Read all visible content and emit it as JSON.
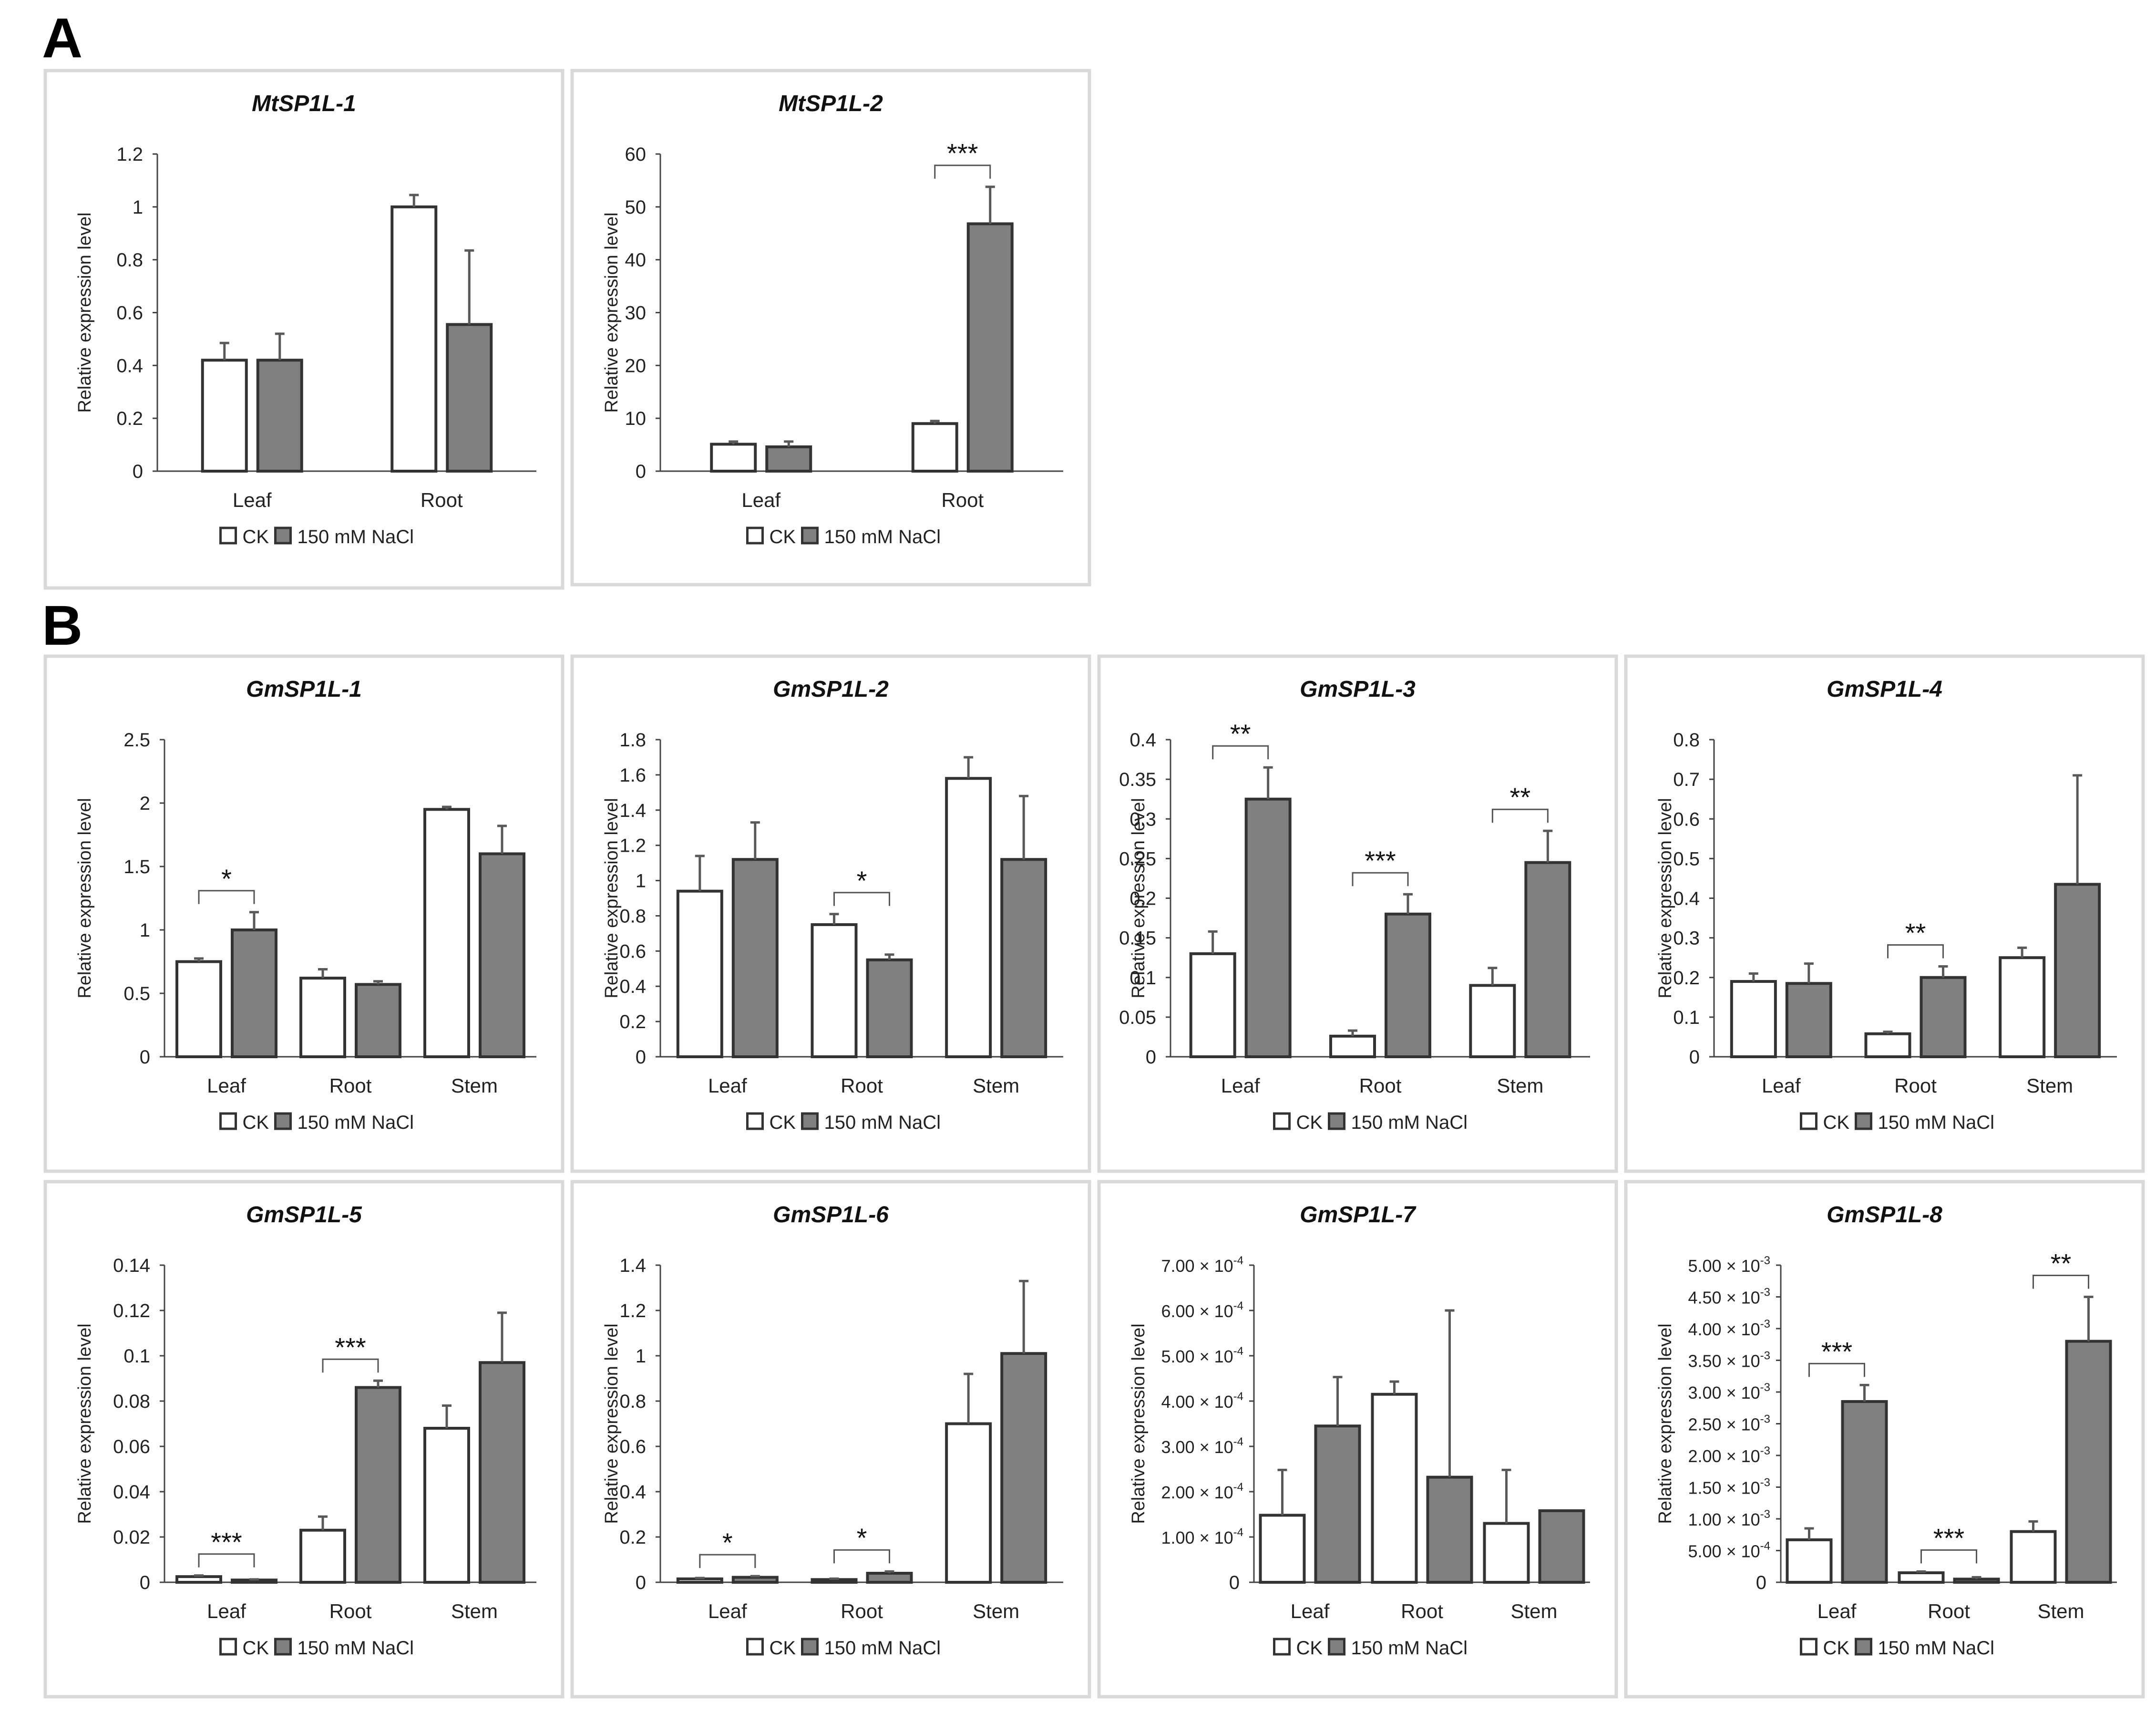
{
  "panel_labels": [
    "A",
    "B"
  ],
  "colors": {
    "ck": "#ffffff",
    "nacl": "#808080",
    "frame": "#d9d9d9",
    "stroke": "#333333",
    "error": "#595959"
  },
  "chart_data": [
    {
      "type": "bar",
      "title": "MtSP1L-1",
      "ylabel": "Relative expression level",
      "categories": [
        "Leaf",
        "Root"
      ],
      "ylim": [
        0,
        1.2
      ],
      "yticks": [
        0,
        0.2,
        0.4,
        0.6,
        0.8,
        1,
        1.2
      ],
      "ytick_labels": [
        "0",
        "0.2",
        "0.4",
        "0.6",
        "0.8",
        "1",
        "1.2"
      ],
      "series": [
        {
          "name": "CK",
          "values": [
            0.42,
            1.0
          ],
          "errors": [
            0.065,
            0.045
          ]
        },
        {
          "name": "150 mM NaCl",
          "values": [
            0.42,
            0.555
          ],
          "errors": [
            0.1,
            0.28
          ]
        }
      ],
      "significance": [],
      "legend": [
        "CK",
        "150 mM NaCl"
      ],
      "legend_position": "bottom"
    },
    {
      "type": "bar",
      "title": "MtSP1L-2",
      "ylabel": "Relative expression level",
      "categories": [
        "Leaf",
        "Root"
      ],
      "ylim": [
        0,
        60
      ],
      "yticks": [
        0,
        10,
        20,
        30,
        40,
        50,
        60
      ],
      "ytick_labels": [
        "0",
        "10",
        "20",
        "30",
        "40",
        "50",
        "60"
      ],
      "series": [
        {
          "name": "CK",
          "values": [
            5.1,
            9.0
          ],
          "errors": [
            0.5,
            0.5
          ]
        },
        {
          "name": "150 mM NaCl",
          "values": [
            4.6,
            46.8
          ],
          "errors": [
            1.0,
            7.0
          ]
        }
      ],
      "significance": [
        {
          "category": "Root",
          "label": "***"
        }
      ],
      "legend": [
        "CK",
        "150 mM NaCl"
      ],
      "legend_position": "bottom"
    },
    {
      "type": "bar",
      "title": "GmSP1L-1",
      "ylabel": "Relative expression level",
      "categories": [
        "Leaf",
        "Root",
        "Stem"
      ],
      "ylim": [
        0,
        2.5
      ],
      "yticks": [
        0,
        0.5,
        1,
        1.5,
        2,
        2.5
      ],
      "ytick_labels": [
        "0",
        "0.5",
        "1",
        "1.5",
        "2",
        "2.5"
      ],
      "series": [
        {
          "name": "CK",
          "values": [
            0.75,
            0.62,
            1.95
          ],
          "errors": [
            0.025,
            0.07,
            0.02
          ]
        },
        {
          "name": "150 mM NaCl",
          "values": [
            1.0,
            0.57,
            1.6
          ],
          "errors": [
            0.14,
            0.025,
            0.22
          ]
        }
      ],
      "significance": [
        {
          "category": "Leaf",
          "label": "*"
        }
      ],
      "legend": [
        "CK",
        "150 mM NaCl"
      ],
      "legend_position": "bottom"
    },
    {
      "type": "bar",
      "title": "GmSP1L-2",
      "ylabel": "Relative expression level",
      "categories": [
        "Leaf",
        "Root",
        "Stem"
      ],
      "ylim": [
        0,
        1.8
      ],
      "yticks": [
        0,
        0.2,
        0.4,
        0.6,
        0.8,
        1,
        1.2,
        1.4,
        1.6,
        1.8
      ],
      "ytick_labels": [
        "0",
        "0.2",
        "0.4",
        "0.6",
        "0.8",
        "1",
        "1.2",
        "1.4",
        "1.6",
        "1.8"
      ],
      "series": [
        {
          "name": "CK",
          "values": [
            0.94,
            0.75,
            1.58
          ],
          "errors": [
            0.2,
            0.06,
            0.12
          ]
        },
        {
          "name": "150 mM NaCl",
          "values": [
            1.12,
            0.55,
            1.12
          ],
          "errors": [
            0.21,
            0.03,
            0.36
          ]
        }
      ],
      "significance": [
        {
          "category": "Root",
          "label": "*"
        }
      ],
      "legend": [
        "CK",
        "150 mM NaCl"
      ],
      "legend_position": "bottom"
    },
    {
      "type": "bar",
      "title": "GmSP1L-3",
      "ylabel": "Relative expression level",
      "categories": [
        "Leaf",
        "Root",
        "Stem"
      ],
      "ylim": [
        0,
        0.4
      ],
      "yticks": [
        0,
        0.05,
        0.1,
        0.15,
        0.2,
        0.25,
        0.3,
        0.35,
        0.4
      ],
      "ytick_labels": [
        "0",
        "0.05",
        "0.1",
        "0.15",
        "0.2",
        "0.25",
        "0.3",
        "0.35",
        "0.4"
      ],
      "series": [
        {
          "name": "CK",
          "values": [
            0.13,
            0.026,
            0.09
          ],
          "errors": [
            0.028,
            0.007,
            0.022
          ]
        },
        {
          "name": "150 mM NaCl",
          "values": [
            0.325,
            0.18,
            0.245
          ],
          "errors": [
            0.04,
            0.025,
            0.04
          ]
        }
      ],
      "significance": [
        {
          "category": "Leaf",
          "label": "**"
        },
        {
          "category": "Root",
          "label": "***"
        },
        {
          "category": "Stem",
          "label": "**"
        }
      ],
      "legend": [
        "CK",
        "150 mM NaCl"
      ],
      "legend_position": "bottom"
    },
    {
      "type": "bar",
      "title": "GmSP1L-4",
      "ylabel": "Relative expression level",
      "categories": [
        "Leaf",
        "Root",
        "Stem"
      ],
      "ylim": [
        0,
        0.8
      ],
      "yticks": [
        0,
        0.1,
        0.2,
        0.3,
        0.4,
        0.5,
        0.6,
        0.7,
        0.8
      ],
      "ytick_labels": [
        "0",
        "0.1",
        "0.2",
        "0.3",
        "0.4",
        "0.5",
        "0.6",
        "0.7",
        "0.8"
      ],
      "series": [
        {
          "name": "CK",
          "values": [
            0.19,
            0.058,
            0.25
          ],
          "errors": [
            0.02,
            0.005,
            0.025
          ]
        },
        {
          "name": "150 mM NaCl",
          "values": [
            0.185,
            0.2,
            0.435
          ],
          "errors": [
            0.05,
            0.028,
            0.275
          ]
        }
      ],
      "significance": [
        {
          "category": "Root",
          "label": "**"
        }
      ],
      "legend": [
        "CK",
        "150 mM NaCl"
      ],
      "legend_position": "bottom"
    },
    {
      "type": "bar",
      "title": "GmSP1L-5",
      "ylabel": "Relative expression level",
      "categories": [
        "Leaf",
        "Root",
        "Stem"
      ],
      "ylim": [
        0,
        0.14
      ],
      "yticks": [
        0,
        0.02,
        0.04,
        0.06,
        0.08,
        0.1,
        0.12,
        0.14
      ],
      "ytick_labels": [
        "0",
        "0.02",
        "0.04",
        "0.06",
        "0.08",
        "0.1",
        "0.12",
        "0.14"
      ],
      "series": [
        {
          "name": "CK",
          "values": [
            0.0025,
            0.023,
            0.068
          ],
          "errors": [
            0.0005,
            0.006,
            0.01
          ]
        },
        {
          "name": "150 mM NaCl",
          "values": [
            0.001,
            0.086,
            0.097
          ],
          "errors": [
            0.0003,
            0.003,
            0.022
          ]
        }
      ],
      "significance": [
        {
          "category": "Leaf",
          "label": "***"
        },
        {
          "category": "Root",
          "label": "***"
        }
      ],
      "legend": [
        "CK",
        "150 mM NaCl"
      ],
      "legend_position": "bottom"
    },
    {
      "type": "bar",
      "title": "GmSP1L-6",
      "ylabel": "Relative expression level",
      "categories": [
        "Leaf",
        "Root",
        "Stem"
      ],
      "ylim": [
        0,
        1.4
      ],
      "yticks": [
        0,
        0.2,
        0.4,
        0.6,
        0.8,
        1,
        1.2,
        1.4
      ],
      "ytick_labels": [
        "0",
        "0.2",
        "0.4",
        "0.6",
        "0.8",
        "1",
        "1.2",
        "1.4"
      ],
      "series": [
        {
          "name": "CK",
          "values": [
            0.015,
            0.012,
            0.7
          ],
          "errors": [
            0.004,
            0.004,
            0.22
          ]
        },
        {
          "name": "150 mM NaCl",
          "values": [
            0.022,
            0.04,
            1.01
          ],
          "errors": [
            0.005,
            0.008,
            0.32
          ]
        }
      ],
      "significance": [
        {
          "category": "Leaf",
          "label": "*"
        },
        {
          "category": "Root",
          "label": "*"
        }
      ],
      "legend": [
        "CK",
        "150 mM NaCl"
      ],
      "legend_position": "bottom"
    },
    {
      "type": "bar",
      "title": "GmSP1L-7",
      "ylabel": "Relative expression level",
      "categories": [
        "Leaf",
        "Root",
        "Stem"
      ],
      "ylim": [
        0,
        0.0007
      ],
      "yticks": [
        0,
        0.0001,
        0.0002,
        0.0003,
        0.0004,
        0.0005,
        0.0006,
        0.0007
      ],
      "ytick_labels": [
        {
          "m": "0",
          "e": ""
        },
        {
          "m": "1.00 × 10",
          "e": "-4"
        },
        {
          "m": "2.00 × 10",
          "e": "-4"
        },
        {
          "m": "3.00 × 10",
          "e": "-4"
        },
        {
          "m": "4.00 × 10",
          "e": "-4"
        },
        {
          "m": "5.00 × 10",
          "e": "-4"
        },
        {
          "m": "6.00 × 10",
          "e": "-4"
        },
        {
          "m": "7.00 × 10",
          "e": "-4"
        }
      ],
      "series": [
        {
          "name": "CK",
          "values": [
            0.000148,
            0.000415,
            0.00013
          ],
          "errors": [
            0.0001,
            2.8e-05,
            0.000118
          ]
        },
        {
          "name": "150 mM NaCl",
          "values": [
            0.000345,
            0.000232,
            0.000158
          ],
          "errors": [
            0.000108,
            0.000368,
            0
          ]
        }
      ],
      "significance": [],
      "legend": [
        "CK",
        "150 mM NaCl"
      ],
      "legend_position": "bottom"
    },
    {
      "type": "bar",
      "title": "GmSP1L-8",
      "ylabel": "Relative expression level",
      "categories": [
        "Leaf",
        "Root",
        "Stem"
      ],
      "ylim": [
        0,
        0.005
      ],
      "yticks": [
        0,
        0.0005,
        0.001,
        0.0015,
        0.002,
        0.0025,
        0.003,
        0.0035,
        0.004,
        0.0045,
        0.005
      ],
      "ytick_labels": [
        {
          "m": "0",
          "e": ""
        },
        {
          "m": "5.00 × 10",
          "e": "-4"
        },
        {
          "m": "1.00 × 10",
          "e": "-3"
        },
        {
          "m": "1.50 × 10",
          "e": "-3"
        },
        {
          "m": "2.00 × 10",
          "e": "-3"
        },
        {
          "m": "2.50 × 10",
          "e": "-3"
        },
        {
          "m": "3.00 × 10",
          "e": "-3"
        },
        {
          "m": "3.50 × 10",
          "e": "-3"
        },
        {
          "m": "4.00 × 10",
          "e": "-3"
        },
        {
          "m": "4.50 × 10",
          "e": "-3"
        },
        {
          "m": "5.00 × 10",
          "e": "-3"
        }
      ],
      "series": [
        {
          "name": "CK",
          "values": [
            0.00067,
            0.00015,
            0.0008
          ],
          "errors": [
            0.00018,
            2e-05,
            0.00016
          ]
        },
        {
          "name": "150 mM NaCl",
          "values": [
            0.00285,
            5e-05,
            0.0038
          ],
          "errors": [
            0.00026,
            3e-05,
            0.0007
          ]
        }
      ],
      "significance": [
        {
          "category": "Leaf",
          "label": "***"
        },
        {
          "category": "Root",
          "label": "***"
        },
        {
          "category": "Stem",
          "label": "**"
        }
      ],
      "legend": [
        "CK",
        "150 mM NaCl"
      ],
      "legend_position": "bottom"
    }
  ]
}
